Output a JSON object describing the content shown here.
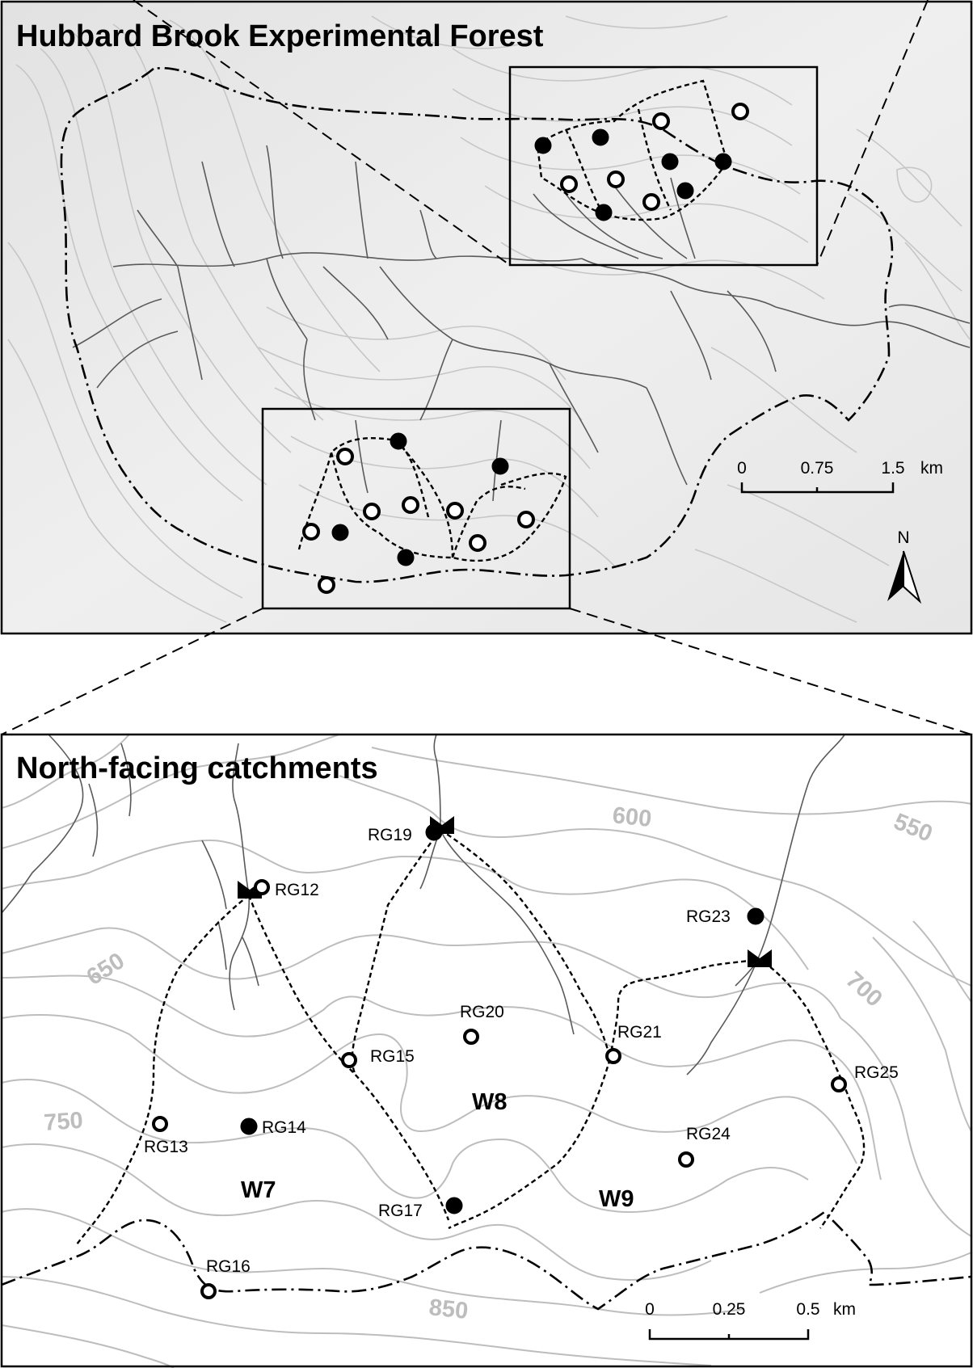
{
  "overview_map": {
    "title": "Hubbard Brook Experimental Forest",
    "scale_bar": {
      "ticks": [
        "0",
        "0.75",
        "1.5"
      ],
      "unit": "km"
    },
    "north_label": "N"
  },
  "detail_map": {
    "title": "North-facing catchments",
    "watersheds": [
      "W7",
      "W8",
      "W9"
    ],
    "contour_labels": [
      "600",
      "550",
      "650",
      "700",
      "750",
      "850"
    ],
    "scale_bar": {
      "ticks": [
        "0",
        "0.25",
        "0.5"
      ],
      "unit": "km"
    },
    "rain_gauges": [
      {
        "id": "RG12",
        "type": "open"
      },
      {
        "id": "RG13",
        "type": "open"
      },
      {
        "id": "RG14",
        "type": "filled"
      },
      {
        "id": "RG15",
        "type": "open"
      },
      {
        "id": "RG16",
        "type": "open"
      },
      {
        "id": "RG17",
        "type": "filled"
      },
      {
        "id": "RG19",
        "type": "filled"
      },
      {
        "id": "RG20",
        "type": "open"
      },
      {
        "id": "RG21",
        "type": "open"
      },
      {
        "id": "RG23",
        "type": "filled"
      },
      {
        "id": "RG24",
        "type": "open"
      },
      {
        "id": "RG25",
        "type": "open"
      }
    ]
  },
  "colors": {
    "contour": "#bdbdbd",
    "stream": "#5a5a5a",
    "relief_background": "#ececec",
    "ink": "#000000"
  }
}
